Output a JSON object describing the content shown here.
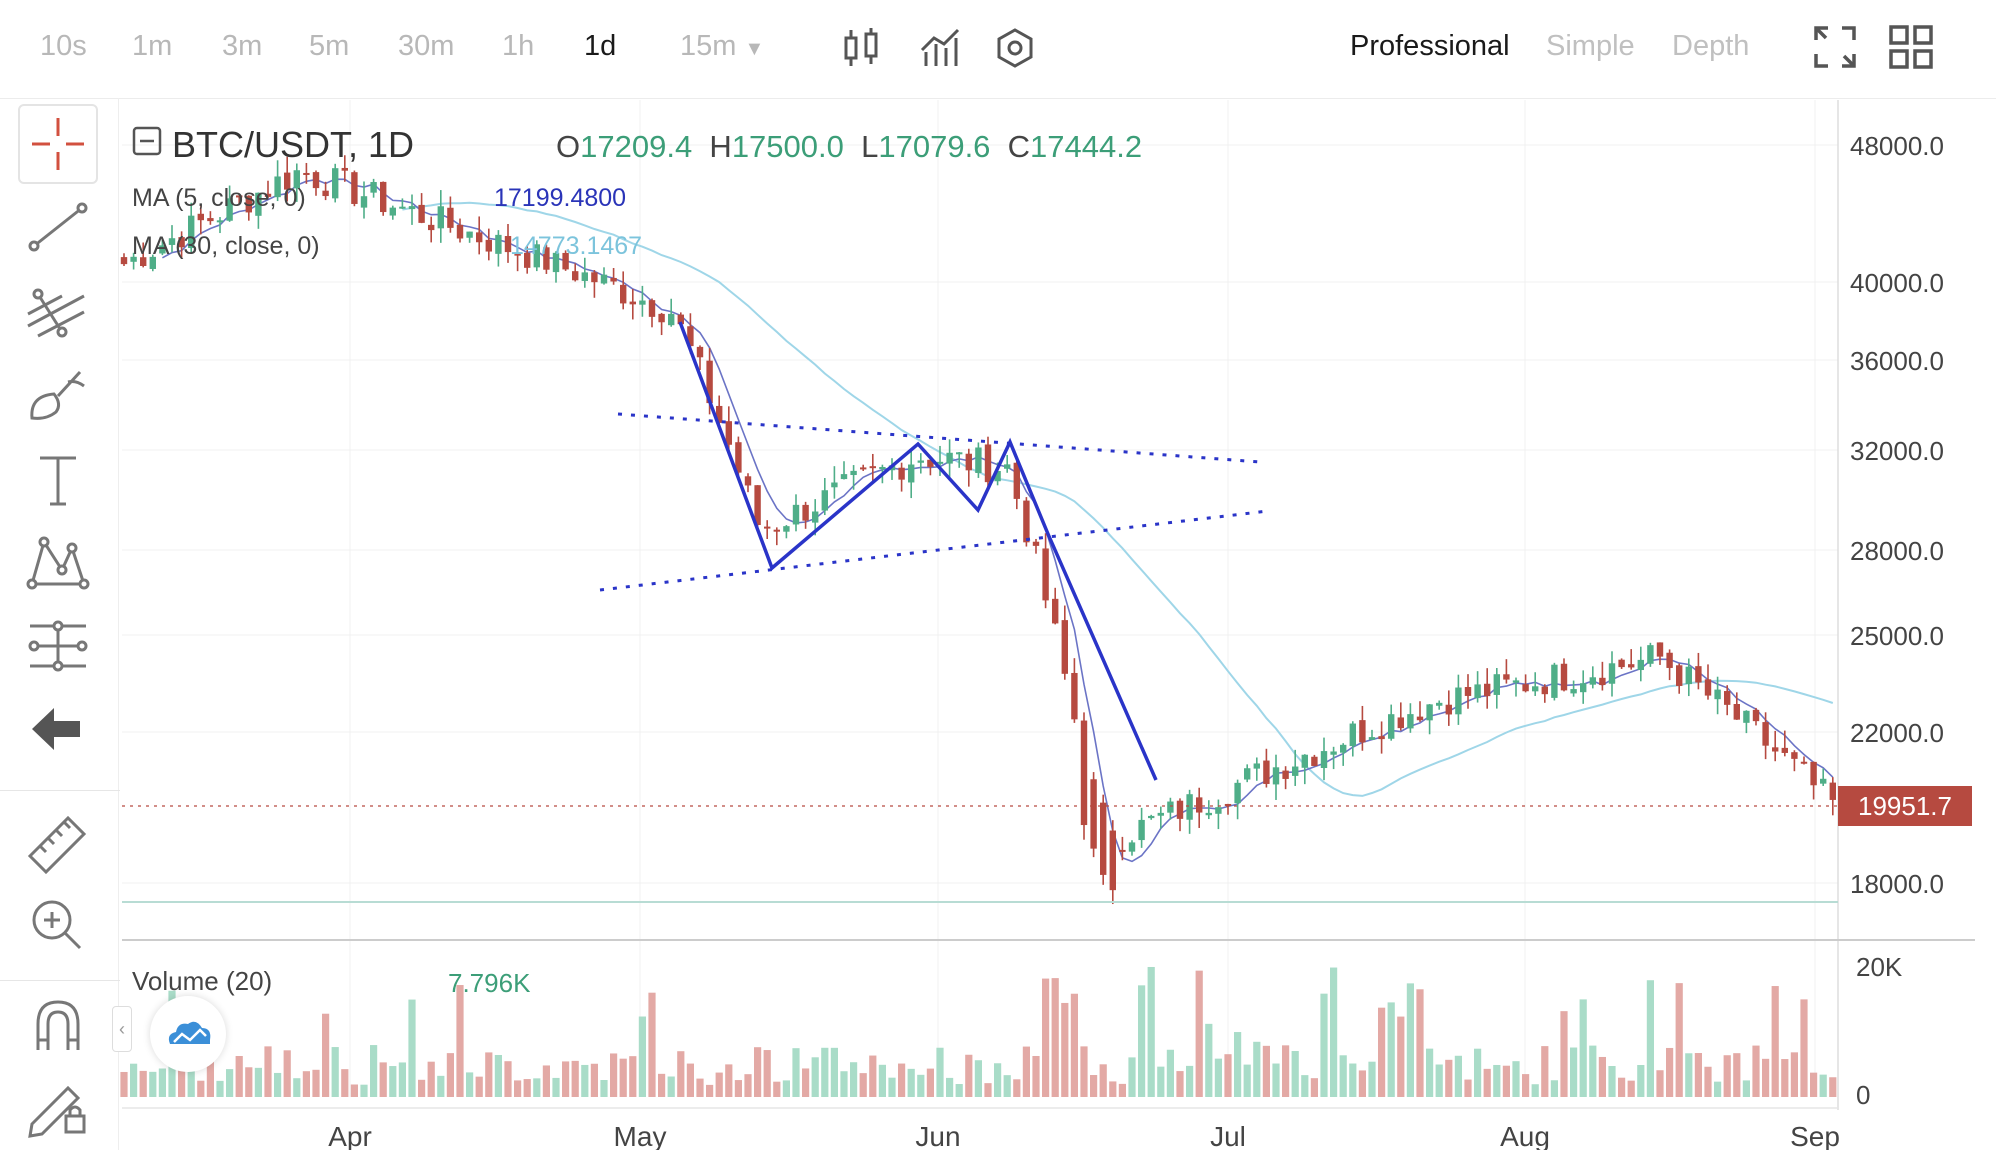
{
  "toolbar": {
    "timeframes": [
      {
        "label": "10s",
        "active": false
      },
      {
        "label": "1m",
        "active": false
      },
      {
        "label": "3m",
        "active": false
      },
      {
        "label": "5m",
        "active": false
      },
      {
        "label": "30m",
        "active": false
      },
      {
        "label": "1h",
        "active": false
      },
      {
        "label": "1d",
        "active": true
      },
      {
        "label": "15m",
        "active": false,
        "dropdown": true
      }
    ],
    "icons": [
      "candlestick-type-icon",
      "indicators-icon",
      "settings-hexagon-icon"
    ],
    "modes": [
      {
        "label": "Professional",
        "active": true
      },
      {
        "label": "Simple",
        "active": false
      },
      {
        "label": "Depth",
        "active": false
      }
    ],
    "right_icons": [
      "fullscreen-icon",
      "layout-grid-icon"
    ]
  },
  "sidebar": {
    "tools": [
      "crosshair-icon",
      "trend-line-icon",
      "pitchfork-icon",
      "brush-icon",
      "text-icon",
      "pattern-icon",
      "fib-levels-icon",
      "back-arrow-icon",
      "ruler-icon",
      "zoom-in-icon",
      "magnet-icon",
      "pencil-lock-icon"
    ]
  },
  "legend": {
    "symbol": "BTC/USDT, 1D",
    "o_label": "O",
    "o_value": "17209.4",
    "h_label": "H",
    "h_value": "17500.0",
    "l_label": "L",
    "l_value": "17079.6",
    "c_label": "C",
    "c_value": "17444.2",
    "ma5_label": "MA (5, close, 0)",
    "ma5_value": "17199.4800",
    "ma30_label": "MA (30, close, 0)",
    "ma30_value": "14773.1467",
    "volume_label": "Volume (20)",
    "volume_value": "7.796K",
    "last_price": "19951.7"
  },
  "colors": {
    "up": "#4fae88",
    "down": "#b64a40",
    "vol_up": "#a9dcc8",
    "vol_down": "#e3a9a5",
    "ma5": "#6b74c6",
    "ma30": "#9fd6e8",
    "pattern": "#2a34c8",
    "last_price_bg": "#b64a40"
  },
  "chart_data": {
    "type": "candlestick",
    "y_ticks": [
      "48000.0",
      "40000.0",
      "36000.0",
      "32000.0",
      "28000.0",
      "25000.0",
      "22000.0",
      "18000.0"
    ],
    "volume_ticks": [
      "20K",
      "0"
    ],
    "x_ticks": [
      "Apr",
      "May",
      "Jun",
      "Jul",
      "Aug",
      "Sep"
    ],
    "key_points": [
      {
        "date": "Mar 20",
        "close": 41000
      },
      {
        "date": "Apr 5",
        "close": 46500
      },
      {
        "date": "Apr 30",
        "close": 38500
      },
      {
        "date": "May 12",
        "close": 28800
      },
      {
        "date": "May 31",
        "close": 31800
      },
      {
        "date": "Jun 7",
        "close": 31300
      },
      {
        "date": "Jun 18",
        "close": 19000
      },
      {
        "date": "Jul 20",
        "close": 23000
      },
      {
        "date": "Aug 15",
        "close": 24300
      },
      {
        "date": "Aug 31",
        "close": 20000
      }
    ]
  }
}
